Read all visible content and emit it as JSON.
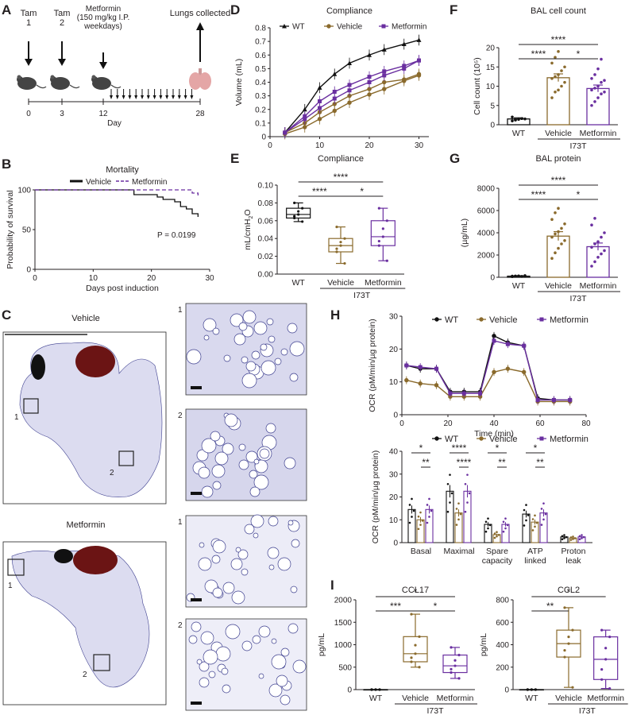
{
  "colors": {
    "wt": "#111111",
    "vehicle": "#8a6a2c",
    "metformin": "#6a2fa0",
    "tissue": "#3d3f8f",
    "heart": "#6b1414"
  },
  "panels": {
    "A": "A",
    "B": "B",
    "C": "C",
    "D": "D",
    "E": "E",
    "F": "F",
    "G": "G",
    "H": "H",
    "I": "I"
  },
  "timeline": {
    "tam1": "Tam\n1",
    "tam2": "Tam\n2",
    "metformin": "Metformin\n(150 mg/kg I.P.\nweekdays)",
    "lungs": "Lungs collected",
    "days": [
      "0",
      "3",
      "12",
      "28"
    ],
    "xlabel": "Day"
  },
  "histology": {
    "vehicle_title": "Vehicle",
    "metformin_title": "Metformin",
    "inset_labels": [
      "1",
      "2",
      "1",
      "2"
    ]
  },
  "chart_data": [
    {
      "id": "B",
      "type": "line",
      "title": "Mortality",
      "xlabel": "Days post induction",
      "ylabel": "Probability of survival",
      "xlim": [
        0,
        30
      ],
      "ylim": [
        0,
        100
      ],
      "xticks": [
        "0",
        "10",
        "20",
        "30"
      ],
      "yticks": [
        "0",
        "50",
        "100"
      ],
      "annotation": "P = 0.0199",
      "series": [
        {
          "name": "Vehicle",
          "x": [
            0,
            16,
            17,
            20,
            21,
            22,
            24,
            25,
            26,
            27,
            28
          ],
          "y": [
            100,
            100,
            94,
            94,
            91,
            88,
            85,
            79,
            76,
            70,
            66
          ]
        },
        {
          "name": "Metformin",
          "x": [
            0,
            17,
            26,
            27,
            28
          ],
          "y": [
            100,
            100,
            100,
            96,
            93
          ]
        }
      ]
    },
    {
      "id": "D",
      "type": "line",
      "title": "Compliance",
      "xlabel": "",
      "ylabel": "Volume (mL)",
      "xlim": [
        0,
        32
      ],
      "ylim": [
        0,
        0.8
      ],
      "xticks": [
        "0",
        "10",
        "20",
        "30"
      ],
      "yticks": [
        "0",
        "0.1",
        "0.2",
        "0.3",
        "0.4",
        "0.5",
        "0.6",
        "0.7",
        "0.8"
      ],
      "series": [
        {
          "name": "WT",
          "x": [
            3,
            7,
            10,
            13,
            16,
            20,
            23,
            27,
            30
          ],
          "y": [
            0.03,
            0.2,
            0.36,
            0.46,
            0.54,
            0.6,
            0.64,
            0.68,
            0.71
          ]
        },
        {
          "name": "Vehicle",
          "x": [
            3,
            7,
            10,
            13,
            16,
            20,
            23,
            27,
            30
          ],
          "y": [
            0.02,
            0.07,
            0.13,
            0.19,
            0.25,
            0.31,
            0.35,
            0.41,
            0.45
          ]
        },
        {
          "name": "",
          "x": [
            3,
            7,
            10,
            13,
            16,
            20,
            23,
            27,
            30
          ],
          "y": [
            0.03,
            0.1,
            0.18,
            0.24,
            0.3,
            0.35,
            0.4,
            0.42,
            0.46
          ]
        },
        {
          "name": "Metformin",
          "x": [
            3,
            7,
            10,
            13,
            16,
            20,
            23,
            27,
            30
          ],
          "y": [
            0.03,
            0.15,
            0.26,
            0.33,
            0.38,
            0.44,
            0.48,
            0.52,
            0.56
          ]
        },
        {
          "name": "",
          "x": [
            3,
            7,
            10,
            13,
            16,
            20,
            23,
            27,
            30
          ],
          "y": [
            0.03,
            0.13,
            0.21,
            0.28,
            0.34,
            0.4,
            0.45,
            0.5,
            0.56
          ]
        }
      ]
    },
    {
      "id": "E",
      "type": "box",
      "title": "Compliance",
      "ylabel": "mL/cmH2O",
      "ylim": [
        0,
        0.1
      ],
      "yticks": [
        "0.00",
        "0.02",
        "0.04",
        "0.06",
        "0.08",
        "0.10"
      ],
      "categories": [
        "WT",
        "Vehicle",
        "Metformin"
      ],
      "group_label": "I73T",
      "boxes": [
        {
          "min": 0.059,
          "q1": 0.063,
          "median": 0.067,
          "q3": 0.074,
          "max": 0.08
        },
        {
          "min": 0.012,
          "q1": 0.025,
          "median": 0.032,
          "q3": 0.04,
          "max": 0.053
        },
        {
          "min": 0.015,
          "q1": 0.032,
          "median": 0.042,
          "q3": 0.06,
          "max": 0.074
        }
      ],
      "significance": [
        {
          "from": 0,
          "to": 2,
          "label": "****"
        },
        {
          "from": 0,
          "to": 1,
          "label": "****"
        },
        {
          "from": 1,
          "to": 2,
          "label": "*"
        }
      ]
    },
    {
      "id": "F",
      "type": "bar",
      "title": "BAL cell count",
      "ylabel": "Cell count (10⁵)",
      "ylim": [
        0,
        20
      ],
      "yticks": [
        "0",
        "5",
        "10",
        "15",
        "20"
      ],
      "categories": [
        "WT",
        "Vehicle",
        "Metformin"
      ],
      "group_label": "I73T",
      "values": [
        1.5,
        12.2,
        9.4
      ],
      "errors": [
        0.3,
        1.0,
        0.9
      ],
      "points": [
        [
          1.0,
          1.2,
          1.4,
          1.6,
          1.5,
          2.0,
          1.3
        ],
        [
          7,
          8.5,
          9,
          10,
          11,
          12,
          12.5,
          13,
          14,
          15,
          16,
          17.5,
          19
        ],
        [
          5,
          6,
          7,
          8,
          8.5,
          9,
          9.5,
          10,
          11,
          11.5,
          12,
          13,
          14.5,
          17
        ]
      ],
      "significance": [
        {
          "from": 0,
          "to": 2,
          "label": "****"
        },
        {
          "from": 0,
          "to": 1,
          "label": "****"
        },
        {
          "from": 1,
          "to": 2,
          "label": "*"
        }
      ]
    },
    {
      "id": "G",
      "type": "bar",
      "title": "BAL protein",
      "ylabel": "(µg/mL)",
      "ylim": [
        0,
        8000
      ],
      "yticks": [
        "0",
        "2000",
        "4000",
        "6000",
        "8000"
      ],
      "categories": [
        "WT",
        "Vehicle",
        "Metformin"
      ],
      "group_label": "I73T",
      "values": [
        100,
        3700,
        2750
      ],
      "errors": [
        40,
        400,
        330
      ],
      "points": [
        [
          60,
          90,
          120,
          80,
          150,
          100,
          110
        ],
        [
          1700,
          2200,
          2600,
          3000,
          3300,
          3600,
          3900,
          4100,
          4400,
          4800,
          5200,
          5800,
          6200
        ],
        [
          1000,
          1400,
          1800,
          2100,
          2400,
          2700,
          3000,
          3200,
          3600,
          4000,
          4700,
          5300
        ]
      ],
      "significance": [
        {
          "from": 0,
          "to": 2,
          "label": "****"
        },
        {
          "from": 0,
          "to": 1,
          "label": "****"
        },
        {
          "from": 1,
          "to": 2,
          "label": "*"
        }
      ]
    },
    {
      "id": "H1",
      "type": "line",
      "title": "",
      "xlabel": "Time (min)",
      "ylabel": "OCR (pM/min/µg protein)",
      "xlim": [
        0,
        80
      ],
      "ylim": [
        0,
        30
      ],
      "xticks": [
        "0",
        "20",
        "40",
        "60",
        "80"
      ],
      "yticks": [
        "0",
        "10",
        "20",
        "30"
      ],
      "series": [
        {
          "name": "WT",
          "x": [
            2,
            8,
            15,
            21,
            27,
            34,
            40,
            46,
            53,
            59,
            66,
            73
          ],
          "y": [
            15,
            14,
            14,
            7,
            7,
            7,
            24,
            22,
            21,
            5,
            4.5,
            4.5
          ]
        },
        {
          "name": "Vehicle",
          "x": [
            2,
            8,
            15,
            21,
            27,
            34,
            40,
            46,
            53,
            59,
            66,
            73
          ],
          "y": [
            10.5,
            9.5,
            9,
            5.5,
            5.5,
            5.5,
            13,
            14,
            13,
            4,
            4,
            4
          ]
        },
        {
          "name": "Metformin",
          "x": [
            2,
            8,
            15,
            21,
            27,
            34,
            40,
            46,
            53,
            59,
            66,
            73
          ],
          "y": [
            15,
            14.5,
            14,
            6.5,
            6.5,
            6.5,
            22.5,
            21.5,
            21,
            4.5,
            4.5,
            4.5
          ]
        }
      ]
    },
    {
      "id": "H2",
      "type": "bar",
      "title": "",
      "ylabel": "OCR (pM/min/µg protein)",
      "ylim": [
        0,
        40
      ],
      "yticks": [
        "0",
        "10",
        "20",
        "30",
        "40"
      ],
      "categories": [
        "Basal",
        "Maximal",
        "Spare\ncapacity",
        "ATP\nlinked",
        "Proton\nleak"
      ],
      "series": [
        {
          "name": "WT",
          "values": [
            14.5,
            22.5,
            8,
            12.5,
            2.5
          ]
        },
        {
          "name": "Vehicle",
          "values": [
            10,
            13,
            3.5,
            9,
            2
          ]
        },
        {
          "name": "Metformin",
          "values": [
            14.5,
            22.5,
            8,
            13,
            2.5
          ]
        }
      ],
      "significance": [
        {
          "group": 0,
          "top": "*",
          "bottom": "**"
        },
        {
          "group": 1,
          "top": "****",
          "bottom": "****"
        },
        {
          "group": 2,
          "top": "*",
          "bottom": "**"
        },
        {
          "group": 3,
          "top": "*",
          "bottom": "**"
        }
      ]
    },
    {
      "id": "I1",
      "type": "box",
      "title": "CCL17",
      "ylabel": "pg/mL",
      "ylim": [
        0,
        2000
      ],
      "yticks": [
        "0",
        "500",
        "1000",
        "1500",
        "2000"
      ],
      "categories": [
        "WT",
        "Vehicle",
        "Metformin"
      ],
      "group_label": "I73T",
      "boxes": [
        {
          "min": 0,
          "q1": 0,
          "median": 0,
          "q3": 0,
          "max": 0
        },
        {
          "min": 500,
          "q1": 620,
          "median": 800,
          "q3": 1180,
          "max": 1680
        },
        {
          "min": 250,
          "q1": 380,
          "median": 530,
          "q3": 770,
          "max": 940
        }
      ],
      "significance": [
        {
          "from": 0,
          "to": 2,
          "label": "*"
        },
        {
          "from": 0,
          "to": 1,
          "label": "***"
        },
        {
          "from": 1,
          "to": 2,
          "label": "*"
        }
      ]
    },
    {
      "id": "I2",
      "type": "box",
      "title": "CCL2",
      "ylabel": "pg/mL",
      "ylim": [
        0,
        800
      ],
      "yticks": [
        "0",
        "200",
        "400",
        "600",
        "800"
      ],
      "categories": [
        "WT",
        "Vehicle",
        "Metformin"
      ],
      "group_label": "I73T",
      "boxes": [
        {
          "min": 0,
          "q1": 0,
          "median": 0,
          "q3": 0,
          "max": 0
        },
        {
          "min": 20,
          "q1": 290,
          "median": 410,
          "q3": 530,
          "max": 730
        },
        {
          "min": 10,
          "q1": 90,
          "median": 270,
          "q3": 470,
          "max": 530
        }
      ],
      "significance": [
        {
          "from": 0,
          "to": 2,
          "label": "*"
        },
        {
          "from": 0,
          "to": 1,
          "label": "**"
        }
      ]
    }
  ]
}
